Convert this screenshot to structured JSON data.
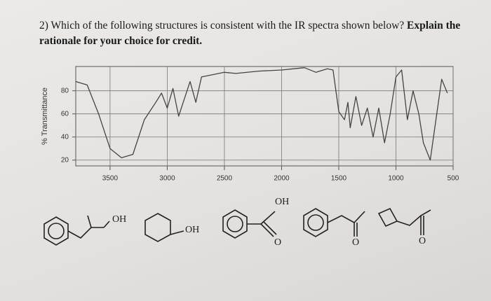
{
  "question": {
    "text": "2) Which of the following structures is consistent with the IR spectra shown below?",
    "emphasis": "Explain the rationale for your choice for credit."
  },
  "chart_data": {
    "type": "line",
    "y_label": "% Transmittance",
    "color": "#444444",
    "x": [
      3800,
      3700,
      3600,
      3500,
      3400,
      3300,
      3200,
      3100,
      3050,
      3000,
      2950,
      2900,
      2860,
      2800,
      2750,
      2700,
      2600,
      2500,
      2400,
      2200,
      2000,
      1900,
      1800,
      1700,
      1600,
      1550,
      1500,
      1450,
      1420,
      1400,
      1350,
      1300,
      1250,
      1200,
      1150,
      1100,
      1050,
      1000,
      950,
      900,
      850,
      800,
      760,
      700,
      650,
      600,
      550
    ],
    "values": [
      88,
      85,
      60,
      30,
      22,
      25,
      55,
      70,
      78,
      65,
      82,
      58,
      70,
      88,
      70,
      92,
      94,
      96,
      95,
      97,
      98,
      99,
      100,
      96,
      99,
      98,
      62,
      55,
      70,
      48,
      75,
      50,
      65,
      40,
      65,
      35,
      60,
      92,
      98,
      55,
      80,
      60,
      35,
      20,
      55,
      90,
      78
    ],
    "xlim": [
      3800,
      500
    ],
    "ylim": [
      15,
      101
    ],
    "xticks": [
      3500,
      3000,
      2500,
      2000,
      1500,
      1000,
      500
    ],
    "yticks": [
      20,
      40,
      60,
      80
    ],
    "grid": true
  },
  "structure_labels": [
    "OH",
    "OH",
    "OH",
    "O",
    "O",
    "O"
  ]
}
